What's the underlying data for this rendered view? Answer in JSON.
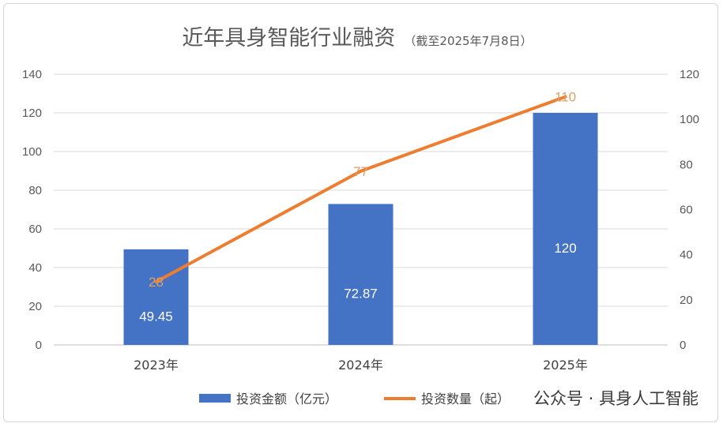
{
  "chart_data": {
    "type": "bar",
    "title": "近年具身智能行业融资",
    "subtitle": "（截至2025年7月8日）",
    "categories": [
      "2023年",
      "2024年",
      "2025年"
    ],
    "series": [
      {
        "name": "投资金额（亿元）",
        "type": "bar",
        "axis": "left",
        "values": [
          49.45,
          72.87,
          120
        ],
        "color": "#4472c4"
      },
      {
        "name": "投资数量（起）",
        "type": "line",
        "axis": "right",
        "values": [
          28,
          77,
          110
        ],
        "color": "#ed7d31"
      }
    ],
    "y_left": {
      "ylim": [
        0,
        140
      ],
      "ticks": [
        0,
        20,
        40,
        60,
        80,
        100,
        120,
        140
      ]
    },
    "y_right": {
      "ylim": [
        0,
        120
      ],
      "ticks": [
        0,
        20,
        40,
        60,
        80,
        100,
        120
      ]
    },
    "grid": true,
    "legend": "bottom"
  },
  "watermark": {
    "text": "公众号 · 具身人工智能"
  }
}
